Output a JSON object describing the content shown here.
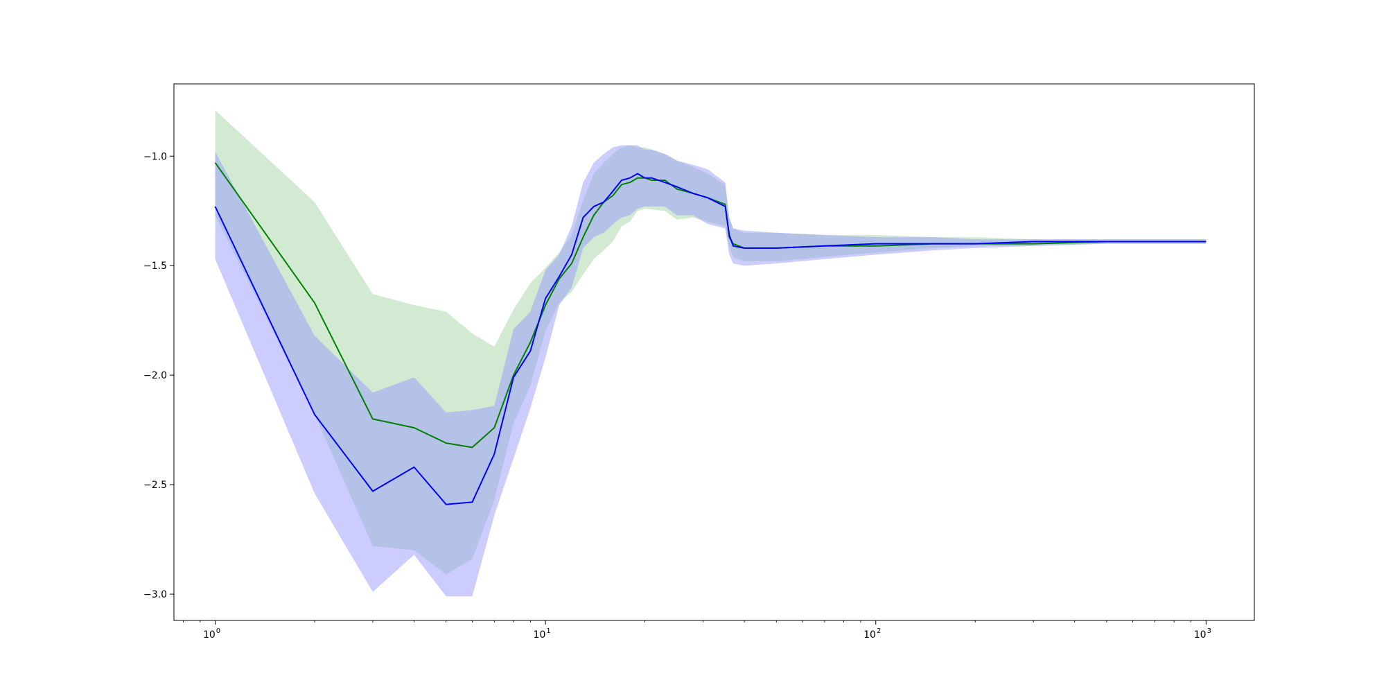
{
  "chart_data": {
    "type": "line",
    "title": "",
    "xlabel": "",
    "ylabel": "",
    "xscale": "log",
    "xlim": [
      0.75,
      1400
    ],
    "ylim": [
      -3.12,
      -0.67
    ],
    "grid": false,
    "legend": "none",
    "x_ticks": [
      {
        "value": 1,
        "base": "10",
        "exp": "0"
      },
      {
        "value": 10,
        "base": "10",
        "exp": "1"
      },
      {
        "value": 100,
        "base": "10",
        "exp": "2"
      },
      {
        "value": 1000,
        "base": "10",
        "exp": "3"
      }
    ],
    "y_ticks": [
      {
        "value": -1.0,
        "label": "−1.0"
      },
      {
        "value": -1.5,
        "label": "−1.5"
      },
      {
        "value": -2.0,
        "label": "−2.0"
      },
      {
        "value": -2.5,
        "label": "−2.5"
      },
      {
        "value": -3.0,
        "label": "−3.0"
      }
    ],
    "series": [
      {
        "color": "#008000",
        "band_color": "#a3d6a3",
        "points": [
          [
            1,
            -1.03
          ],
          [
            2,
            -1.67
          ],
          [
            3,
            -2.2
          ],
          [
            4,
            -2.24
          ],
          [
            5,
            -2.31
          ],
          [
            6,
            -2.33
          ],
          [
            7,
            -2.24
          ],
          [
            8,
            -2.0
          ],
          [
            9,
            -1.85
          ],
          [
            10,
            -1.68
          ],
          [
            11,
            -1.56
          ],
          [
            12,
            -1.49
          ],
          [
            13,
            -1.37
          ],
          [
            14,
            -1.27
          ],
          [
            15,
            -1.21
          ],
          [
            16,
            -1.18
          ],
          [
            17,
            -1.13
          ],
          [
            18,
            -1.12
          ],
          [
            19,
            -1.1
          ],
          [
            20,
            -1.1
          ],
          [
            21,
            -1.11
          ],
          [
            23,
            -1.11
          ],
          [
            25,
            -1.15
          ],
          [
            28,
            -1.17
          ],
          [
            31,
            -1.19
          ],
          [
            35,
            -1.22
          ],
          [
            36,
            -1.37
          ],
          [
            37,
            -1.4
          ],
          [
            40,
            -1.42
          ],
          [
            50,
            -1.42
          ],
          [
            70,
            -1.41
          ],
          [
            100,
            -1.41
          ],
          [
            150,
            -1.4
          ],
          [
            200,
            -1.4
          ],
          [
            300,
            -1.4
          ],
          [
            500,
            -1.39
          ],
          [
            1000,
            -1.39
          ]
        ],
        "lower": [
          [
            1,
            -1.27
          ],
          [
            2,
            -2.18
          ],
          [
            3,
            -2.78
          ],
          [
            4,
            -2.8
          ],
          [
            5,
            -2.91
          ],
          [
            6,
            -2.84
          ],
          [
            7,
            -2.57
          ],
          [
            8,
            -2.22
          ],
          [
            9,
            -2.05
          ],
          [
            10,
            -1.8
          ],
          [
            11,
            -1.67
          ],
          [
            12,
            -1.62
          ],
          [
            13,
            -1.54
          ],
          [
            14,
            -1.47
          ],
          [
            15,
            -1.43
          ],
          [
            16,
            -1.39
          ],
          [
            17,
            -1.32
          ],
          [
            18,
            -1.3
          ],
          [
            19,
            -1.25
          ],
          [
            20,
            -1.24
          ],
          [
            23,
            -1.25
          ],
          [
            25,
            -1.29
          ],
          [
            28,
            -1.28
          ],
          [
            31,
            -1.3
          ],
          [
            35,
            -1.32
          ],
          [
            36,
            -1.41
          ],
          [
            37,
            -1.46
          ],
          [
            40,
            -1.48
          ],
          [
            50,
            -1.48
          ],
          [
            70,
            -1.46
          ],
          [
            100,
            -1.44
          ],
          [
            150,
            -1.42
          ],
          [
            200,
            -1.41
          ],
          [
            300,
            -1.41
          ],
          [
            500,
            -1.4
          ],
          [
            1000,
            -1.4
          ]
        ],
        "upper": [
          [
            1,
            -0.79
          ],
          [
            2,
            -1.21
          ],
          [
            3,
            -1.63
          ],
          [
            4,
            -1.68
          ],
          [
            5,
            -1.71
          ],
          [
            6,
            -1.81
          ],
          [
            7,
            -1.87
          ],
          [
            8,
            -1.7
          ],
          [
            9,
            -1.58
          ],
          [
            10,
            -1.51
          ],
          [
            11,
            -1.44
          ],
          [
            12,
            -1.36
          ],
          [
            13,
            -1.2
          ],
          [
            14,
            -1.08
          ],
          [
            15,
            -1.03
          ],
          [
            16,
            -0.99
          ],
          [
            17,
            -0.96
          ],
          [
            18,
            -0.95
          ],
          [
            19,
            -0.96
          ],
          [
            20,
            -0.96
          ],
          [
            23,
            -0.99
          ],
          [
            25,
            -1.02
          ],
          [
            28,
            -1.05
          ],
          [
            31,
            -1.08
          ],
          [
            35,
            -1.13
          ],
          [
            36,
            -1.28
          ],
          [
            37,
            -1.33
          ],
          [
            40,
            -1.35
          ],
          [
            50,
            -1.35
          ],
          [
            70,
            -1.36
          ],
          [
            100,
            -1.36
          ],
          [
            150,
            -1.37
          ],
          [
            200,
            -1.37
          ],
          [
            300,
            -1.38
          ],
          [
            500,
            -1.38
          ],
          [
            1000,
            -1.38
          ]
        ]
      },
      {
        "color": "#0000ff",
        "band_color": "#9999ff",
        "points": [
          [
            1,
            -1.23
          ],
          [
            2,
            -2.18
          ],
          [
            3,
            -2.53
          ],
          [
            4,
            -2.42
          ],
          [
            5,
            -2.59
          ],
          [
            6,
            -2.58
          ],
          [
            7,
            -2.36
          ],
          [
            8,
            -2.01
          ],
          [
            9,
            -1.89
          ],
          [
            10,
            -1.65
          ],
          [
            11,
            -1.55
          ],
          [
            12,
            -1.45
          ],
          [
            13,
            -1.28
          ],
          [
            14,
            -1.23
          ],
          [
            15,
            -1.21
          ],
          [
            16,
            -1.16
          ],
          [
            17,
            -1.11
          ],
          [
            18,
            -1.1
          ],
          [
            19,
            -1.08
          ],
          [
            20,
            -1.1
          ],
          [
            21,
            -1.1
          ],
          [
            23,
            -1.12
          ],
          [
            25,
            -1.14
          ],
          [
            28,
            -1.17
          ],
          [
            31,
            -1.19
          ],
          [
            35,
            -1.23
          ],
          [
            36,
            -1.36
          ],
          [
            37,
            -1.41
          ],
          [
            40,
            -1.42
          ],
          [
            50,
            -1.42
          ],
          [
            70,
            -1.41
          ],
          [
            100,
            -1.4
          ],
          [
            150,
            -1.4
          ],
          [
            200,
            -1.4
          ],
          [
            300,
            -1.39
          ],
          [
            500,
            -1.39
          ],
          [
            1000,
            -1.39
          ]
        ],
        "lower": [
          [
            1,
            -1.47
          ],
          [
            2,
            -2.54
          ],
          [
            3,
            -2.99
          ],
          [
            4,
            -2.82
          ],
          [
            5,
            -3.01
          ],
          [
            6,
            -3.01
          ],
          [
            7,
            -2.64
          ],
          [
            8,
            -2.38
          ],
          [
            9,
            -2.15
          ],
          [
            10,
            -1.92
          ],
          [
            11,
            -1.68
          ],
          [
            12,
            -1.6
          ],
          [
            13,
            -1.42
          ],
          [
            14,
            -1.37
          ],
          [
            15,
            -1.35
          ],
          [
            16,
            -1.31
          ],
          [
            17,
            -1.28
          ],
          [
            18,
            -1.27
          ],
          [
            19,
            -1.24
          ],
          [
            20,
            -1.23
          ],
          [
            23,
            -1.23
          ],
          [
            25,
            -1.27
          ],
          [
            28,
            -1.27
          ],
          [
            31,
            -1.31
          ],
          [
            35,
            -1.33
          ],
          [
            36,
            -1.45
          ],
          [
            37,
            -1.49
          ],
          [
            40,
            -1.5
          ],
          [
            50,
            -1.49
          ],
          [
            70,
            -1.47
          ],
          [
            100,
            -1.45
          ],
          [
            150,
            -1.43
          ],
          [
            200,
            -1.42
          ],
          [
            300,
            -1.41
          ],
          [
            500,
            -1.4
          ],
          [
            1000,
            -1.4
          ]
        ],
        "upper": [
          [
            1,
            -0.98
          ],
          [
            2,
            -1.82
          ],
          [
            3,
            -2.08
          ],
          [
            4,
            -2.01
          ],
          [
            5,
            -2.17
          ],
          [
            6,
            -2.16
          ],
          [
            7,
            -2.14
          ],
          [
            8,
            -1.79
          ],
          [
            9,
            -1.71
          ],
          [
            10,
            -1.52
          ],
          [
            11,
            -1.45
          ],
          [
            12,
            -1.32
          ],
          [
            13,
            -1.12
          ],
          [
            14,
            -1.03
          ],
          [
            15,
            -0.99
          ],
          [
            16,
            -0.96
          ],
          [
            17,
            -0.95
          ],
          [
            18,
            -0.95
          ],
          [
            19,
            -0.95
          ],
          [
            20,
            -0.97
          ],
          [
            21,
            -0.97
          ],
          [
            23,
            -0.99
          ],
          [
            25,
            -1.02
          ],
          [
            28,
            -1.04
          ],
          [
            31,
            -1.06
          ],
          [
            35,
            -1.12
          ],
          [
            36,
            -1.28
          ],
          [
            37,
            -1.33
          ],
          [
            40,
            -1.34
          ],
          [
            50,
            -1.35
          ],
          [
            70,
            -1.36
          ],
          [
            100,
            -1.37
          ],
          [
            150,
            -1.37
          ],
          [
            200,
            -1.38
          ],
          [
            300,
            -1.38
          ],
          [
            500,
            -1.38
          ],
          [
            1000,
            -1.38
          ]
        ]
      }
    ]
  }
}
